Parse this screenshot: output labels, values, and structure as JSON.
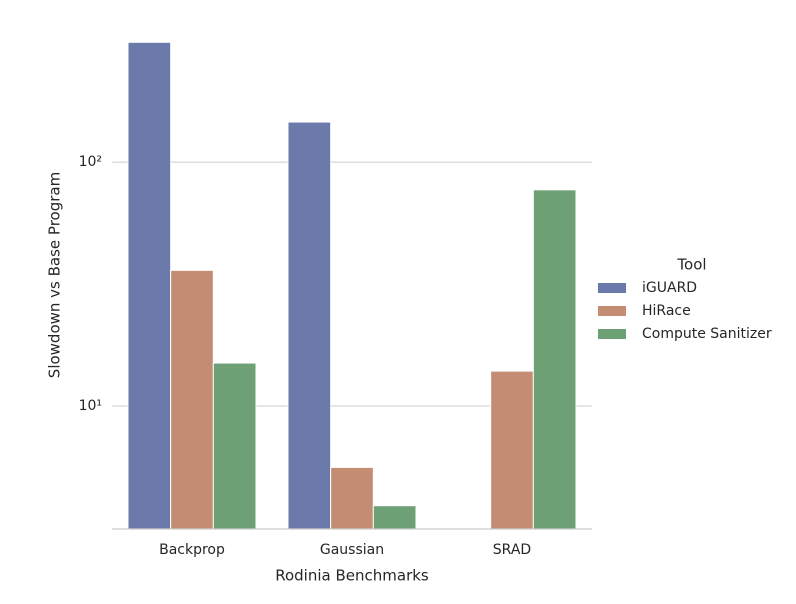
{
  "chart_data": {
    "type": "bar",
    "x_label": "Rodinia Benchmarks",
    "y_label": "Slowdown vs Base Program",
    "categories": [
      "Backprop",
      "Gaussian",
      "SRAD"
    ],
    "series": [
      {
        "name": "iGUARD",
        "color": "#6b79ab",
        "values": [
          310,
          146,
          null
        ]
      },
      {
        "name": "HiRace",
        "color": "#c48c72",
        "values": [
          36,
          5.6,
          13.9
        ]
      },
      {
        "name": "Compute Sanitizer",
        "color": "#6ea076",
        "values": [
          15,
          3.9,
          77
        ]
      }
    ],
    "log_scale": true,
    "ylim": [
      3.13,
      390
    ],
    "yticks": [
      {
        "value": 10,
        "label": "10¹"
      },
      {
        "value": 100,
        "label": "10²"
      }
    ],
    "grid": true,
    "legend_title": "Tool",
    "legend_position": "right"
  }
}
